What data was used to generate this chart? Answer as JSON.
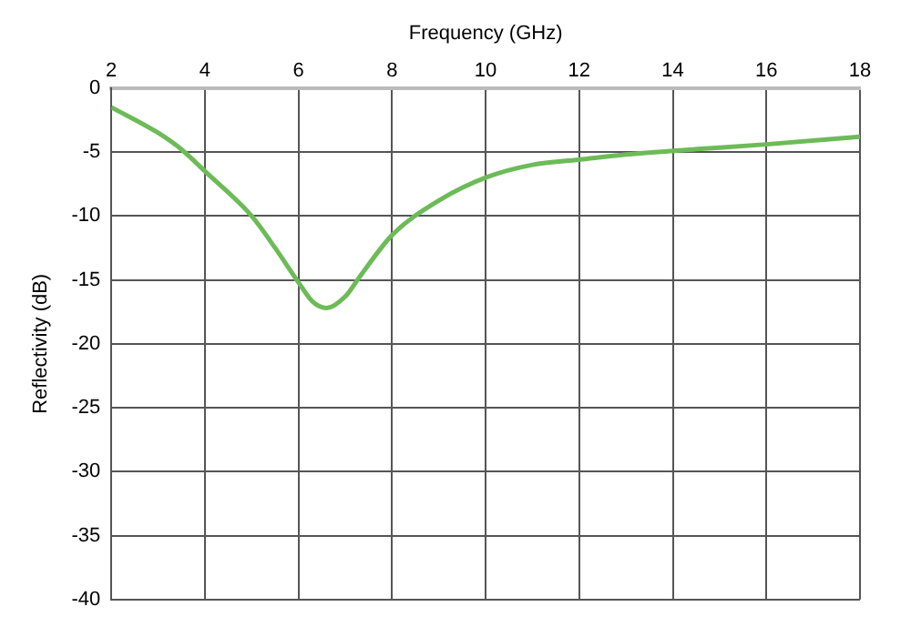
{
  "chart_data": {
    "type": "line",
    "xlabel": "Frequency (GHz)",
    "ylabel": "Reflectivity (dB)",
    "xlim": [
      2,
      18
    ],
    "xticks": [
      2,
      4,
      6,
      8,
      10,
      12,
      14,
      16,
      18
    ],
    "ylim": [
      -40,
      0
    ],
    "yticks": [
      -40,
      -35,
      -30,
      -25,
      -20,
      -15,
      -10,
      -5,
      0
    ],
    "grid": true,
    "marker": "none",
    "line_style": "solid",
    "series": [
      {
        "color": "#6dbb58",
        "x": [
          2,
          3,
          3.5,
          4,
          5,
          5.5,
          6,
          6.3,
          6.6,
          7,
          7.3,
          8,
          9,
          10,
          11,
          12,
          13,
          14,
          16,
          18
        ],
        "values": [
          -1.5,
          -3.5,
          -4.8,
          -6.5,
          -10,
          -12.5,
          -15.2,
          -16.7,
          -17.2,
          -16.3,
          -14.8,
          -11.5,
          -8.8,
          -7.0,
          -6.0,
          -5.6,
          -5.2,
          -4.9,
          -4.4,
          -3.8
        ]
      }
    ]
  }
}
